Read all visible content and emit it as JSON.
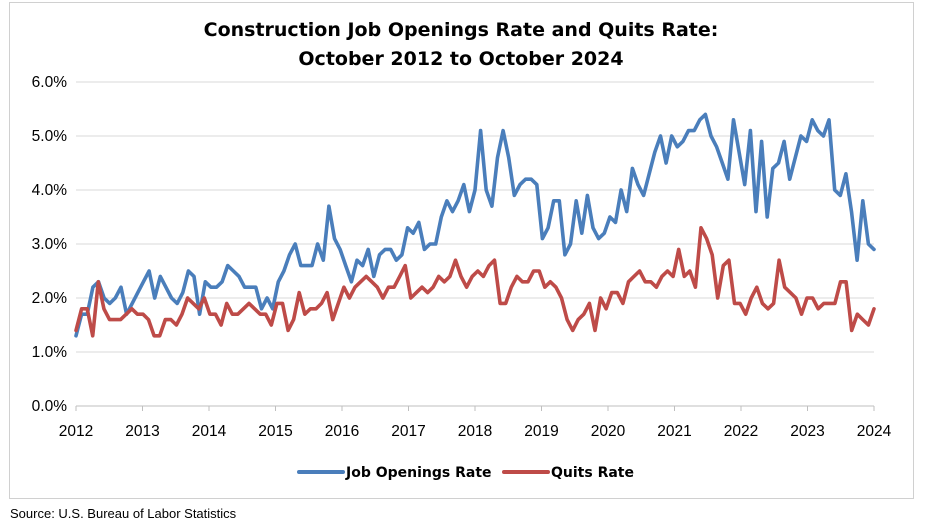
{
  "chart_data": {
    "type": "line",
    "title": "Construction Job Openings Rate and Quits Rate:",
    "subtitle": "October 2012 to October 2024",
    "ylim": [
      0,
      6
    ],
    "y_ticks": [
      "0.0%",
      "1.0%",
      "2.0%",
      "3.0%",
      "4.0%",
      "5.0%",
      "6.0%"
    ],
    "x_ticks": [
      "2012",
      "2013",
      "2014",
      "2015",
      "2016",
      "2017",
      "2018",
      "2019",
      "2020",
      "2021",
      "2022",
      "2023",
      "2024"
    ],
    "x_range": [
      2012.0,
      2024.0
    ],
    "grid": true,
    "legend_position": "bottom",
    "series": [
      {
        "name": "Job Openings Rate",
        "color": "#4a7ebb",
        "values": [
          1.3,
          1.7,
          1.7,
          2.2,
          2.3,
          2.0,
          1.9,
          2.0,
          2.2,
          1.7,
          1.9,
          2.1,
          2.3,
          2.5,
          2.0,
          2.4,
          2.2,
          2.0,
          1.9,
          2.1,
          2.5,
          2.4,
          1.7,
          2.3,
          2.2,
          2.2,
          2.3,
          2.6,
          2.5,
          2.4,
          2.2,
          2.2,
          2.2,
          1.8,
          2.0,
          1.8,
          2.3,
          2.5,
          2.8,
          3.0,
          2.6,
          2.6,
          2.6,
          3.0,
          2.7,
          3.7,
          3.1,
          2.9,
          2.6,
          2.3,
          2.7,
          2.6,
          2.9,
          2.4,
          2.8,
          2.9,
          2.9,
          2.7,
          2.8,
          3.3,
          3.2,
          3.4,
          2.9,
          3.0,
          3.0,
          3.5,
          3.8,
          3.6,
          3.8,
          4.1,
          3.6,
          4.0,
          5.1,
          4.0,
          3.7,
          4.6,
          5.1,
          4.6,
          3.9,
          4.1,
          4.2,
          4.2,
          4.1,
          3.1,
          3.3,
          3.8,
          3.8,
          2.8,
          3.0,
          3.8,
          3.2,
          3.9,
          3.3,
          3.1,
          3.2,
          3.5,
          3.4,
          4.0,
          3.6,
          4.4,
          4.1,
          3.9,
          4.3,
          4.7,
          5.0,
          4.5,
          5.0,
          4.8,
          4.9,
          5.1,
          5.1,
          5.3,
          5.4,
          5.0,
          4.8,
          4.5,
          4.2,
          5.3,
          4.7,
          4.1,
          5.1,
          3.6,
          4.9,
          3.5,
          4.4,
          4.5,
          4.9,
          4.2,
          4.6,
          5.0,
          4.9,
          5.3,
          5.1,
          5.0,
          5.3,
          4.0,
          3.9,
          4.3,
          3.6,
          2.7,
          3.8,
          3.0,
          2.9
        ]
      },
      {
        "name": "Quits Rate",
        "color": "#be4b48",
        "values": [
          1.4,
          1.8,
          1.8,
          1.3,
          2.3,
          1.8,
          1.6,
          1.6,
          1.6,
          1.7,
          1.8,
          1.7,
          1.7,
          1.6,
          1.3,
          1.3,
          1.6,
          1.6,
          1.5,
          1.7,
          2.0,
          1.9,
          1.8,
          2.0,
          1.7,
          1.7,
          1.5,
          1.9,
          1.7,
          1.7,
          1.8,
          1.9,
          1.8,
          1.7,
          1.7,
          1.5,
          1.9,
          1.9,
          1.4,
          1.6,
          2.1,
          1.7,
          1.8,
          1.8,
          1.9,
          2.1,
          1.6,
          1.9,
          2.2,
          2.0,
          2.2,
          2.3,
          2.4,
          2.3,
          2.2,
          2.0,
          2.2,
          2.2,
          2.4,
          2.6,
          2.0,
          2.1,
          2.2,
          2.1,
          2.2,
          2.4,
          2.3,
          2.4,
          2.7,
          2.4,
          2.2,
          2.4,
          2.5,
          2.4,
          2.6,
          2.7,
          1.9,
          1.9,
          2.2,
          2.4,
          2.3,
          2.3,
          2.5,
          2.5,
          2.2,
          2.3,
          2.2,
          2.0,
          1.6,
          1.4,
          1.6,
          1.7,
          1.9,
          1.4,
          2.0,
          1.8,
          2.1,
          2.1,
          1.9,
          2.3,
          2.4,
          2.5,
          2.3,
          2.3,
          2.2,
          2.4,
          2.5,
          2.4,
          2.9,
          2.4,
          2.5,
          2.2,
          3.3,
          3.1,
          2.8,
          2.0,
          2.6,
          2.7,
          1.9,
          1.9,
          1.7,
          2.0,
          2.2,
          1.9,
          1.8,
          1.9,
          2.7,
          2.2,
          2.1,
          2.0,
          1.7,
          2.0,
          2.0,
          1.8,
          1.9,
          1.9,
          1.9,
          2.3,
          2.3,
          1.4,
          1.7,
          1.6,
          1.5,
          1.8
        ]
      }
    ]
  },
  "source_note": "Source: U.S. Bureau of Labor Statistics"
}
